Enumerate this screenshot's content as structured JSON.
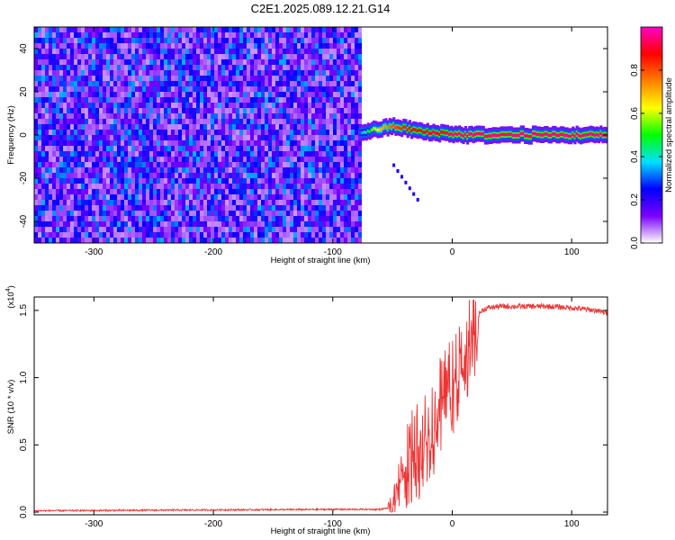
{
  "figure_title": "C2E1.2025.089.12.21.G14",
  "chart_data": [
    {
      "type": "heatmap",
      "title": "C2E1.2025.089.12.21.G14",
      "xlabel": "Height of straight line (km)",
      "ylabel": "Frequency (Hz)",
      "xlim": [
        -350,
        130
      ],
      "ylim": [
        -50,
        50
      ],
      "xticks": [
        -300,
        -200,
        -100,
        0,
        100
      ],
      "xtick_labels": [
        "-300",
        "-200",
        "-100",
        "0",
        "100"
      ],
      "yticks": [
        -40,
        -20,
        0,
        20,
        40
      ],
      "ytick_labels": [
        "-40",
        "-20",
        "0",
        "20",
        "40"
      ],
      "colorbar": {
        "label": "Normalized spectral amplitude",
        "range": [
          0,
          1
        ],
        "ticks": [
          0.0,
          0.2,
          0.4,
          0.6,
          0.8
        ],
        "tick_labels": [
          "0.0",
          "0.2",
          "0.4",
          "0.6",
          "0.8"
        ],
        "colors": [
          "#ffffff",
          "#7a00ff",
          "#0000ff",
          "#00e0ff",
          "#00ff00",
          "#ffff00",
          "#ff7f00",
          "#ff0000",
          "#ff00c8"
        ]
      },
      "noise_region": {
        "x_range": [
          -350,
          -78
        ],
        "level": 0.15
      },
      "signal_trace": {
        "x": [
          -78,
          -70,
          -60,
          -50,
          -40,
          -30,
          -20,
          -10,
          0,
          10,
          20,
          40,
          60,
          80,
          100,
          110,
          120,
          130
        ],
        "freq": [
          1,
          2,
          3,
          4,
          3,
          2,
          1,
          1,
          0.5,
          0,
          0,
          0,
          0,
          0,
          0,
          0,
          0,
          0
        ],
        "amplitude": [
          0.3,
          0.5,
          0.7,
          0.8,
          0.85,
          0.9,
          0.9,
          0.9,
          0.95,
          0.95,
          0.95,
          0.95,
          0.95,
          0.95,
          0.95,
          0.95,
          0.95,
          0.95
        ]
      },
      "streak": {
        "x": [
          -50,
          -30
        ],
        "freq": [
          -14,
          -30
        ]
      }
    },
    {
      "type": "line",
      "title": "",
      "xlabel": "Height of straight line (km)",
      "ylabel": "SNR (10 * v/v)",
      "y_multiplier": "(x10",
      "y_multiplier_exp": "4",
      "xlim": [
        -350,
        130
      ],
      "ylim": [
        -0.02,
        1.6
      ],
      "xticks": [
        -300,
        -200,
        -100,
        0,
        100
      ],
      "xtick_labels": [
        "-300",
        "-200",
        "-100",
        "0",
        "100"
      ],
      "yticks": [
        0.0,
        0.5,
        1.0,
        1.5
      ],
      "ytick_labels": [
        "0.0",
        "0.5",
        "1.0",
        "1.5"
      ],
      "line_color": "#ee3333",
      "series": [
        {
          "name": "SNR",
          "x": [
            -350,
            -100,
            -60,
            -55,
            -50,
            -45,
            -40,
            -35,
            -30,
            -25,
            -20,
            -15,
            -10,
            -5,
            0,
            5,
            10,
            15,
            20,
            25,
            30,
            40,
            60,
            80,
            100,
            120,
            130
          ],
          "y": [
            0.01,
            0.02,
            0.02,
            0.03,
            0.08,
            0.28,
            0.42,
            0.48,
            0.55,
            0.62,
            0.68,
            0.78,
            0.88,
            0.98,
            1.05,
            1.15,
            1.25,
            1.38,
            1.45,
            1.5,
            1.52,
            1.53,
            1.53,
            1.53,
            1.52,
            1.5,
            1.48
          ]
        }
      ]
    }
  ]
}
